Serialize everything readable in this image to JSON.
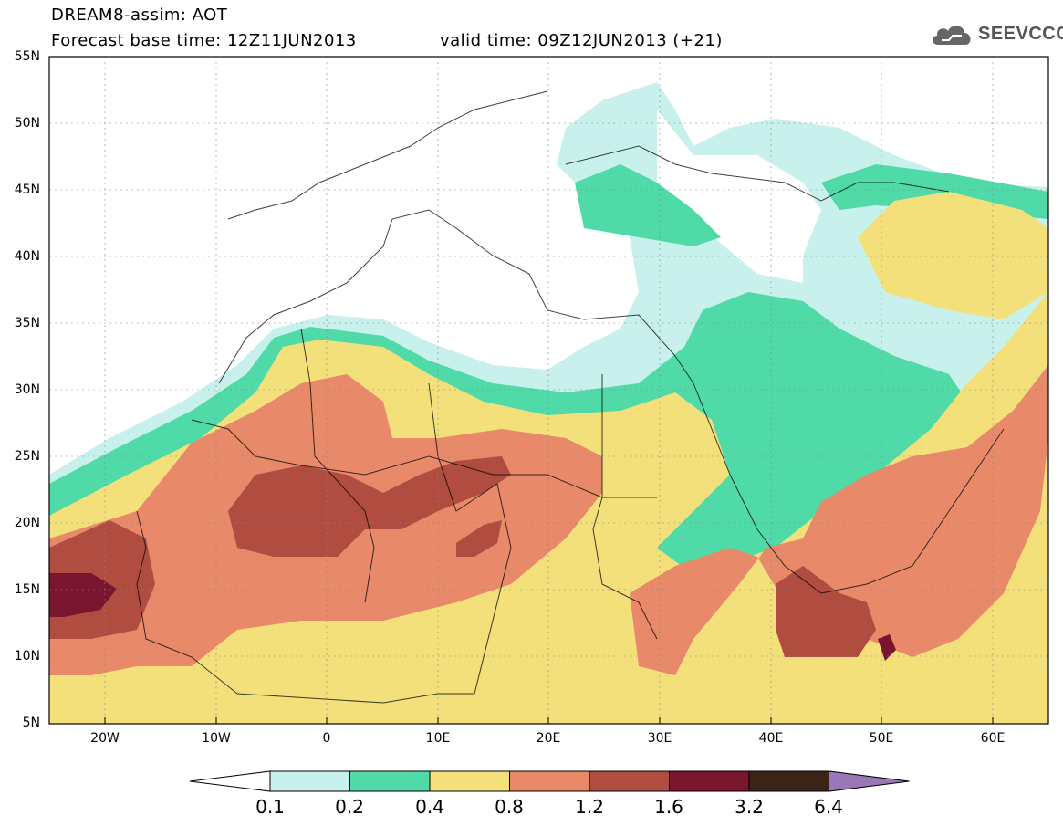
{
  "header": {
    "title_line1": "DREAM8-assim: AOT",
    "title_line2": "Forecast base time: 12Z11JUN2013",
    "valid_time": "valid time: 09Z12JUN2013 (+21)",
    "logo_text": "SEEVCCC",
    "logo_icon": "cloud-icon"
  },
  "map": {
    "variable": "AOT",
    "lat_range": [
      "5N",
      "55N"
    ],
    "lon_range": [
      "25W",
      "65E"
    ],
    "lat_labels": [
      "55N",
      "50N",
      "45N",
      "40N",
      "35N",
      "30N",
      "25N",
      "20N",
      "15N",
      "10N",
      "5N"
    ],
    "lon_labels": [
      "20W",
      "10W",
      "0",
      "10E",
      "20E",
      "30E",
      "40E",
      "50E",
      "60E"
    ]
  },
  "colorbar": {
    "levels": [
      "0.1",
      "0.2",
      "0.4",
      "0.8",
      "1.2",
      "1.6",
      "3.2",
      "6.4"
    ],
    "colors": [
      "#ffffff",
      "#c8f0ec",
      "#4fdaa8",
      "#f4e07a",
      "#e8896a",
      "#b04c40",
      "#7a1530",
      "#3a2418",
      "#9a78b8"
    ]
  }
}
